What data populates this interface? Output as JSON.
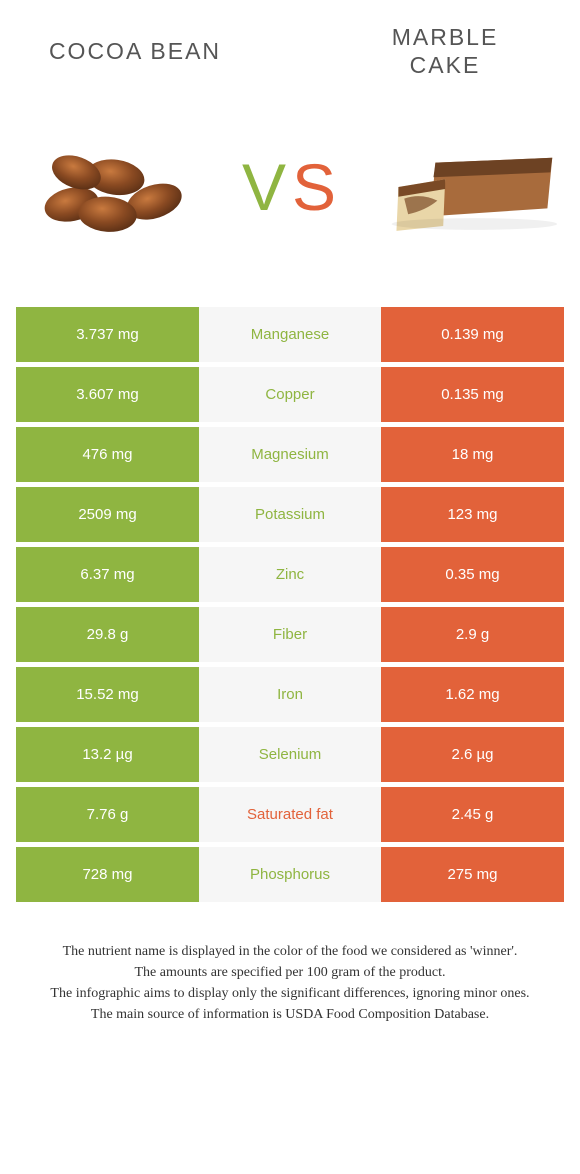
{
  "header": {
    "left": "COCOA BEAN",
    "right_line1": "MARBLE",
    "right_line2": "CAKE"
  },
  "vs": {
    "v": "V",
    "s": "S",
    "v_color": "#8fb541",
    "s_color": "#e2623a"
  },
  "colors": {
    "left_cell": "#8fb541",
    "right_cell": "#e2623a",
    "row_bg": "#f6f6f6",
    "mid_green": "#8fb541",
    "mid_orange": "#e2623a"
  },
  "rows": [
    {
      "left": "3.737 mg",
      "label": "Manganese",
      "right": "0.139 mg",
      "label_color": "#8fb541"
    },
    {
      "left": "3.607 mg",
      "label": "Copper",
      "right": "0.135 mg",
      "label_color": "#8fb541"
    },
    {
      "left": "476 mg",
      "label": "Magnesium",
      "right": "18 mg",
      "label_color": "#8fb541"
    },
    {
      "left": "2509 mg",
      "label": "Potassium",
      "right": "123 mg",
      "label_color": "#8fb541"
    },
    {
      "left": "6.37 mg",
      "label": "Zinc",
      "right": "0.35 mg",
      "label_color": "#8fb541"
    },
    {
      "left": "29.8 g",
      "label": "Fiber",
      "right": "2.9 g",
      "label_color": "#8fb541"
    },
    {
      "left": "15.52 mg",
      "label": "Iron",
      "right": "1.62 mg",
      "label_color": "#8fb541"
    },
    {
      "left": "13.2 µg",
      "label": "Selenium",
      "right": "2.6 µg",
      "label_color": "#8fb541"
    },
    {
      "left": "7.76 g",
      "label": "Saturated fat",
      "right": "2.45 g",
      "label_color": "#e2623a"
    },
    {
      "left": "728 mg",
      "label": "Phosphorus",
      "right": "275 mg",
      "label_color": "#8fb541"
    }
  ],
  "footnotes": [
    "The nutrient name is displayed in the color of the food we considered as 'winner'.",
    "The amounts are specified per 100 gram of the product.",
    "The infographic aims to display only the significant differences, ignoring minor ones.",
    "The main source of information is USDA Food Composition Database."
  ]
}
